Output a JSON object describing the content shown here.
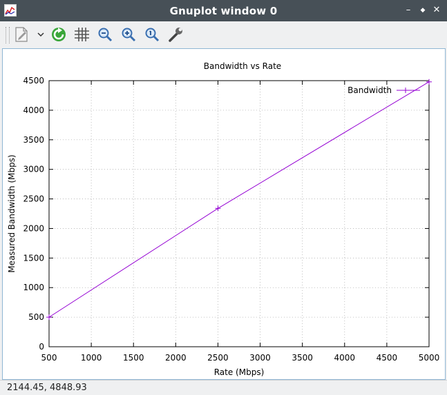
{
  "window": {
    "title": "Gnuplot window 0"
  },
  "window_controls": {
    "minimize": "–",
    "restore": "◆",
    "close": "✕"
  },
  "toolbar": {
    "items": [
      {
        "name": "export",
        "icon": "export-icon"
      },
      {
        "name": "export-menu",
        "icon": "chevron-down-icon"
      },
      {
        "name": "replot",
        "icon": "replot-icon"
      },
      {
        "name": "grid",
        "icon": "grid-icon"
      },
      {
        "name": "previous-zoom",
        "icon": "zoom-out-icon"
      },
      {
        "name": "next-zoom",
        "icon": "zoom-in-icon"
      },
      {
        "name": "autoscale",
        "icon": "zoom-reset-icon"
      },
      {
        "name": "settings",
        "icon": "wrench-icon"
      }
    ]
  },
  "chart_data": {
    "type": "line",
    "title": "Bandwidth vs Rate",
    "xlabel": "Rate (Mbps)",
    "ylabel": "Measured Bandwidth (Mbps)",
    "xlim": [
      500,
      5000
    ],
    "ylim": [
      0,
      4500
    ],
    "xticks": [
      500,
      1000,
      1500,
      2000,
      2500,
      3000,
      3500,
      4000,
      4500,
      5000
    ],
    "yticks": [
      0,
      500,
      1000,
      1500,
      2000,
      2500,
      3000,
      3500,
      4000,
      4500
    ],
    "grid": true,
    "legend": "top-right",
    "series": [
      {
        "name": "Bandwidth",
        "color": "#9400d3",
        "x": [
          500,
          2500,
          5000
        ],
        "y": [
          500,
          2340,
          4480
        ]
      }
    ]
  },
  "status": {
    "coordinates": "2144.45,  4848.93"
  }
}
